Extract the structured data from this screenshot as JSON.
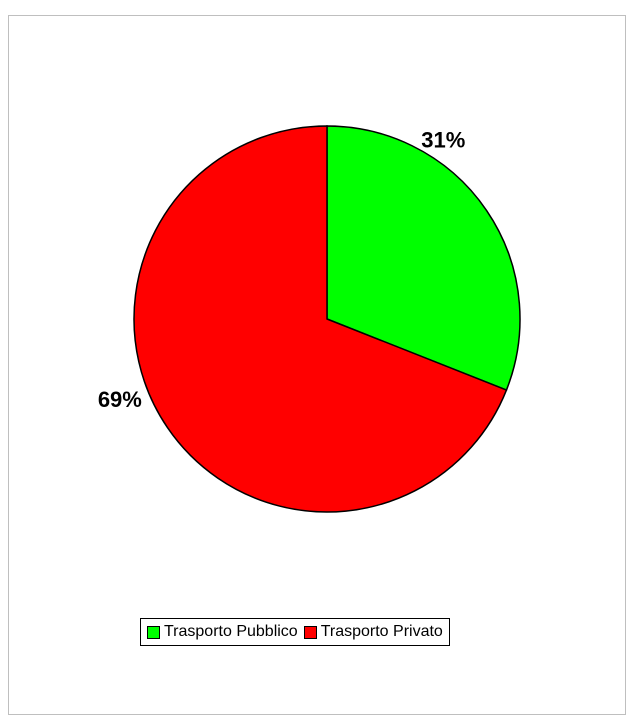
{
  "chart_data": {
    "type": "pie",
    "title": "",
    "slices": [
      {
        "label": "Trasporto Pubblico",
        "value": 31,
        "display": "31%",
        "color": "#00ff00"
      },
      {
        "label": "Trasporto Privato",
        "value": 69,
        "display": "69%",
        "color": "#ff0000"
      }
    ],
    "start": "12 o'clock",
    "direction": "clockwise",
    "legend_position": "bottom"
  }
}
